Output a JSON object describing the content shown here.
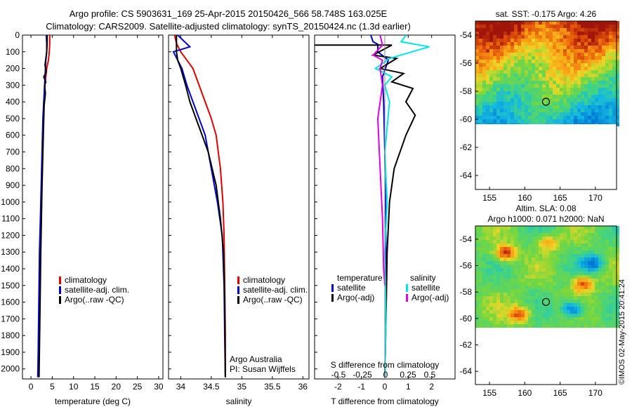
{
  "header": {
    "line1": "Argo profile: CS 5903631_169 25-Apr-2015 20150426_566 58.748S 163.025E",
    "line2": "Climatology: CARS2009. Satellite-adjusted climatology: synTS_20150424.nc (1.3d earlier)"
  },
  "colors": {
    "climatology": "#e00000",
    "satellite": "#0000cc",
    "argo": "#000000",
    "sat_salinity": "#00e5e5",
    "argo_salinity": "#e000e0"
  },
  "side_text": "©IMOS 02-May-2015 20:41:24",
  "chart_data": [
    {
      "type": "line",
      "xlabel": "temperature (deg C)",
      "ylabel": "",
      "xlim": [
        -2,
        31
      ],
      "ylim": [
        2060,
        0
      ],
      "x_ticks": [
        0,
        5,
        10,
        15,
        20,
        25,
        30
      ],
      "y_ticks": [
        0,
        100,
        200,
        300,
        400,
        500,
        600,
        700,
        800,
        900,
        1000,
        1100,
        1200,
        1300,
        1400,
        1500,
        1600,
        1700,
        1800,
        1900,
        2000
      ],
      "legend": [
        "climatology",
        "satellite-adj. clim.",
        "Argo(..raw -QC)"
      ],
      "legend_position": "lower-middle",
      "series": [
        {
          "name": "climatology",
          "color": "#e00000",
          "x": [
            4.4,
            4.4,
            4.3,
            4.1,
            3.7,
            3.3,
            3.1,
            2.9,
            2.7,
            2.5,
            2.3,
            2.1,
            2.0,
            1.9,
            1.8,
            1.7
          ],
          "y": [
            0,
            50,
            100,
            150,
            200,
            300,
            400,
            500,
            700,
            900,
            1100,
            1300,
            1500,
            1700,
            1900,
            2050
          ]
        },
        {
          "name": "satellite-adj. clim.",
          "color": "#0000cc",
          "x": [
            3.6,
            3.7,
            3.7,
            3.5,
            3.4,
            3.2,
            3.0,
            2.8,
            2.6,
            2.4,
            2.2,
            2.0,
            1.9,
            1.8,
            1.7,
            1.6
          ],
          "y": [
            0,
            50,
            100,
            150,
            200,
            300,
            400,
            500,
            700,
            900,
            1100,
            1300,
            1500,
            1700,
            1900,
            2050
          ]
        },
        {
          "name": "Argo(..raw -QC)",
          "color": "#000000",
          "x": [
            3.8,
            3.8,
            3.7,
            3.3,
            3.6,
            3.0,
            3.5,
            3.2,
            3.4,
            3.1,
            2.9,
            2.6,
            2.3,
            2.1,
            1.9
          ],
          "y": [
            0,
            50,
            100,
            180,
            220,
            250,
            280,
            300,
            350,
            420,
            600,
            900,
            1300,
            1700,
            2050
          ]
        }
      ]
    },
    {
      "type": "line",
      "xlabel": "salinity",
      "ylabel": "",
      "xlim": [
        33.8,
        36.1
      ],
      "ylim": [
        2060,
        0
      ],
      "x_ticks": [
        34,
        34.5,
        35,
        35.5,
        36
      ],
      "legend": [
        "climatology",
        "satellite-adj. clim.",
        "Argo(..raw -QC)"
      ],
      "legend_position": "lower-right",
      "annotations": [
        "Argo Australia",
        "PI: Susan Wijffels"
      ],
      "series": [
        {
          "name": "climatology",
          "color": "#e00000",
          "x": [
            33.9,
            33.93,
            34.0,
            34.1,
            34.2,
            34.3,
            34.4,
            34.5,
            34.58,
            34.65,
            34.69,
            34.71,
            34.72,
            34.73,
            34.73
          ],
          "y": [
            0,
            50,
            100,
            150,
            200,
            300,
            400,
            500,
            600,
            800,
            1000,
            1200,
            1500,
            1800,
            2050
          ]
        },
        {
          "name": "satellite-adj. clim.",
          "color": "#0000cc",
          "x": [
            33.95,
            34.15,
            33.88,
            33.95,
            34.02,
            34.1,
            34.2,
            34.3,
            34.4,
            34.5,
            34.6,
            34.68,
            34.71,
            34.72,
            34.73
          ],
          "y": [
            0,
            70,
            100,
            150,
            200,
            300,
            400,
            500,
            600,
            800,
            1000,
            1200,
            1500,
            1800,
            2050
          ]
        },
        {
          "name": "Argo(..raw -QC)",
          "color": "#000000",
          "x": [
            33.93,
            33.93,
            33.95,
            34.0,
            34.08,
            34.15,
            34.25,
            34.35,
            34.45,
            34.58,
            34.65,
            34.7,
            34.72,
            34.73
          ],
          "y": [
            0,
            100,
            150,
            200,
            300,
            400,
            500,
            600,
            700,
            900,
            1100,
            1300,
            1600,
            2050
          ]
        }
      ]
    },
    {
      "type": "line",
      "xlabel": "T difference from climatology",
      "ylabel": "",
      "xlim": [
        -3,
        3
      ],
      "ylim": [
        2060,
        0
      ],
      "x_ticks": [
        -2,
        -1,
        0,
        1,
        2
      ],
      "secondary_xlabel": "S difference from climatology",
      "secondary_x_ticks": [
        "-0.5",
        "-0.25",
        "0",
        "0.25",
        "0.5"
      ],
      "legend_groups": [
        {
          "title": "temperature",
          "items": [
            "satellite",
            "Argo(-adj)"
          ]
        },
        {
          "title": "salinity",
          "items": [
            "satellite",
            "Argo(-adj)"
          ]
        }
      ],
      "legend_position": "lower-middle",
      "series": [
        {
          "name": "temperature satellite",
          "color": "#0000cc",
          "x": [
            -0.6,
            -0.5,
            -0.3,
            -0.3,
            0.15,
            -0.1,
            -0.05,
            0,
            0.03,
            0.05,
            0.05,
            0.02,
            0.0
          ],
          "y": [
            0,
            40,
            55,
            100,
            150,
            250,
            400,
            700,
            1000,
            1300,
            1600,
            1900,
            2050
          ]
        },
        {
          "name": "temperature Argo(-adj)",
          "color": "#000000",
          "x": [
            -3,
            0.3,
            -0.5,
            0.5,
            -0.2,
            0.8,
            0.3,
            1.2,
            0.9,
            1.3,
            0.9,
            0.4,
            0.2,
            0.1,
            0.05,
            0.0
          ],
          "y": [
            60,
            60,
            120,
            140,
            200,
            230,
            280,
            320,
            400,
            480,
            600,
            800,
            1000,
            1300,
            1700,
            2050
          ]
        },
        {
          "name": "salinity satellite",
          "color": "#00e5e5",
          "x": [
            0.9,
            0.7,
            1.9,
            1.4,
            0.2,
            -0.4,
            0.3,
            0.0,
            0.2,
            0.0,
            0.1,
            0.0,
            0.05,
            0.0
          ],
          "y": [
            0,
            40,
            70,
            90,
            140,
            200,
            250,
            300,
            400,
            700,
            1000,
            1300,
            1700,
            2050
          ]
        },
        {
          "name": "salinity Argo(-adj)",
          "color": "#e000e0",
          "x": [
            -0.2,
            -0.1,
            -0.5,
            -0.1,
            -0.2,
            -0.1,
            -0.3,
            -0.2,
            -0.1,
            -0.05,
            0.0
          ],
          "y": [
            0,
            60,
            120,
            150,
            200,
            300,
            500,
            800,
            1100,
            1400,
            1500
          ]
        }
      ]
    },
    {
      "type": "heatmap",
      "title": "sat. SST: -0.175  Argo: 4.26",
      "xlim": [
        153,
        173
      ],
      "ylim": [
        -65,
        -53
      ],
      "x_ticks": [
        155,
        160,
        165,
        170
      ],
      "y_ticks": [
        -54,
        -56,
        -58,
        -60,
        -62,
        -64
      ],
      "data_extent_lat": [
        -60,
        -53
      ],
      "marker": {
        "lon": 163.0,
        "lat": -58.75
      }
    },
    {
      "type": "heatmap",
      "title": "Altim. SLA: 0.08",
      "subtitle": "Argo h1000: 0.071  h2000: NaN",
      "xlim": [
        153,
        173
      ],
      "ylim": [
        -65,
        -53
      ],
      "x_ticks": [
        155,
        160,
        165,
        170
      ],
      "y_ticks": [
        -54,
        -56,
        -58,
        -60,
        -62,
        -64
      ],
      "data_extent_lat": [
        -60,
        -53
      ],
      "marker": {
        "lon": 163.0,
        "lat": -58.75
      }
    }
  ]
}
